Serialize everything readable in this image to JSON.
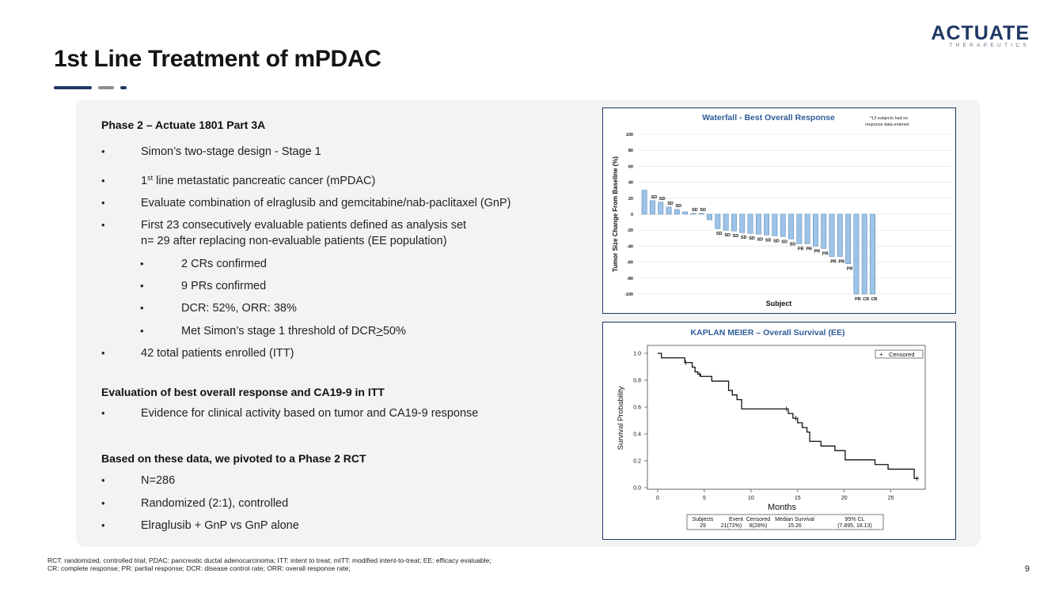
{
  "header": {
    "title": "1st Line Treatment of mPDAC",
    "logo_main": "ACTUATE",
    "logo_sub": "THERAPEUTICS"
  },
  "section1": {
    "heading": "Phase 2 – Actuate 1801 Part 3A",
    "b1": "Simon’s two-stage design - Stage 1",
    "b2_sup": "st",
    "b2_pre": "1",
    "b2_rest": " line metastatic pancreatic cancer (mPDAC)",
    "b3": "Evaluate combination of elraglusib and gemcitabine/nab-paclitaxel (GnP)",
    "b4_line1": "First 23 consecutively evaluable patients defined as analysis set",
    "b4_line2": "n= 29 after replacing non-evaluable patients (EE population)",
    "sub1": "2 CRs confirmed",
    "sub2": "9 PRs confirmed",
    "sub3": "DCR: 52%, ORR: 38%",
    "sub4_pre": "Met Simon’s stage 1 threshold of DCR",
    "sub4_ge": ">",
    "sub4_post": "50%",
    "b5": "42 total patients enrolled (ITT)"
  },
  "section2": {
    "heading": "Evaluation of best overall response and CA19-9 in ITT",
    "b1": "Evidence for clinical activity based on tumor and CA19-9 response"
  },
  "section3": {
    "heading": "Based on these data, we pivoted to a Phase 2 RCT",
    "b1": "N=286",
    "b2": "Randomized (2:1), controlled",
    "b3": "Elraglusib + GnP vs GnP alone"
  },
  "bullet_char": "•",
  "footnote": {
    "line1": "RCT: randomized, controlled trial; PDAC: pancreatic ductal adenocarcinoma; ITT: intent to treat; mITT: modified intent-to-treat; EE: efficacy evaluable;",
    "line2": "CR: complete response; PR: partial response; DCR: disease control rate; ORR: overall response rate;"
  },
  "page_number": "9",
  "colors": {
    "navy": "#1f3864",
    "bar": "#9dc3e6",
    "bar_edge": "#4a7eb5",
    "gray": "#8c8c8c"
  },
  "chart_data": [
    {
      "type": "bar",
      "title": "Waterfall - Best Overall Response",
      "note_line1": "*13 subjects had no",
      "note_line2": "response data entered",
      "xlabel": "Subject",
      "ylabel": "Tumor Size Change From Baseline (%)",
      "ylim": [
        -100,
        100
      ],
      "yticks": [
        "100",
        "80",
        "60",
        "40",
        "20",
        "0",
        "-20",
        "-40",
        "-60",
        "-80",
        "-100"
      ],
      "values": [
        30,
        17,
        15,
        9,
        6,
        3,
        1,
        1,
        -7,
        -18,
        -20,
        -21,
        -23,
        -24,
        -25,
        -26,
        -27,
        -28,
        -31,
        -37,
        -37,
        -40,
        -43,
        -53,
        -53,
        -62,
        -100,
        -100,
        -100
      ],
      "labels": [
        "",
        "SD",
        "SD",
        "SD",
        "SD",
        "",
        "SD",
        "SD",
        "",
        "SD",
        "SD",
        "SD",
        "SD",
        "SD",
        "SD",
        "SD",
        "SD",
        "SD",
        "SD",
        "PR",
        "PR",
        "PR",
        "PR",
        "PR",
        "PR",
        "PR",
        "PR",
        "CR",
        "CR"
      ]
    },
    {
      "type": "line",
      "title": "KAPLAN MEIER – Overall Survival (EE)",
      "xlabel": "Months",
      "ylabel": "Survival Probability",
      "xlim": [
        0,
        28
      ],
      "ylim": [
        0,
        1.0
      ],
      "xticks": [
        "0",
        "5",
        "10",
        "15",
        "20",
        "25"
      ],
      "yticks": [
        "0.0",
        "0.2",
        "0.4",
        "0.6",
        "0.8",
        "1.0"
      ],
      "legend": "Censored",
      "series": [
        {
          "name": "Overall Survival",
          "x": [
            0,
            0.4,
            2.9,
            3.7,
            4.0,
            4.3,
            4.6,
            5.8,
            7.6,
            8.0,
            8.5,
            9.0,
            14.0,
            14.5,
            15.0,
            15.5,
            16.0,
            16.3,
            17.5,
            19.0,
            20.1,
            23.3,
            24.7,
            27.5
          ],
          "y": [
            1.0,
            0.966,
            0.931,
            0.897,
            0.862,
            0.845,
            0.828,
            0.793,
            0.724,
            0.69,
            0.655,
            0.586,
            0.552,
            0.517,
            0.483,
            0.448,
            0.414,
            0.345,
            0.31,
            0.276,
            0.207,
            0.172,
            0.138,
            0.069
          ]
        }
      ],
      "censored_x": [
        3.0,
        4.5,
        13.8,
        14.8,
        27.8
      ],
      "table": {
        "headers": [
          "Subjects",
          "Event",
          "Censored",
          "Median Survival",
          "95% CL"
        ],
        "row": [
          "29",
          "21(72%)",
          "8(28%)",
          "15.26",
          "(7.895, 18.13)"
        ]
      }
    }
  ]
}
